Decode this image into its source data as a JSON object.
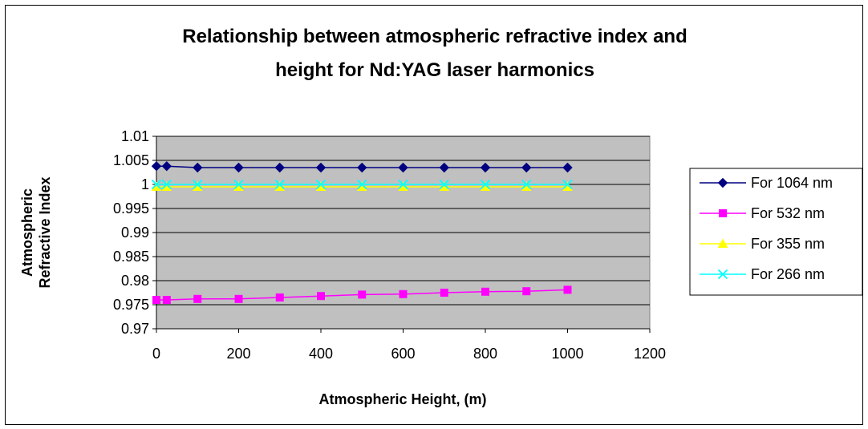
{
  "chart_data": {
    "type": "line",
    "title_lines": [
      "Relationship between atmospheric refractive index and",
      "height  for Nd:YAG laser harmonics"
    ],
    "xlabel": "Atmospheric Height, (m)",
    "ylabel_lines": [
      "Atmospheric",
      "Refractive Index"
    ],
    "xlim": [
      0,
      1200
    ],
    "ylim": [
      0.97,
      1.01
    ],
    "x_ticks": [
      "0",
      "200",
      "400",
      "600",
      "800",
      "1000",
      "1200"
    ],
    "y_ticks": [
      "0.97",
      "0.975",
      "0.98",
      "0.985",
      "0.99",
      "0.995",
      "1",
      "1.005",
      "1.01"
    ],
    "x": [
      0,
      25,
      100,
      200,
      300,
      400,
      500,
      600,
      700,
      800,
      900,
      1000
    ],
    "grid": "horizontal",
    "plot_background": "#c0c0c0",
    "legend_position": "right",
    "series": [
      {
        "name": "For 1064 nm",
        "color": "#000080",
        "marker": "diamond",
        "values": [
          1.0038,
          1.0038,
          1.0035,
          1.0035,
          1.0035,
          1.0035,
          1.0035,
          1.0035,
          1.0035,
          1.0035,
          1.0035,
          1.0035
        ]
      },
      {
        "name": "For 532 nm",
        "color": "#ff00ff",
        "marker": "square",
        "values": [
          0.976,
          0.976,
          0.9762,
          0.9762,
          0.9765,
          0.9768,
          0.9771,
          0.9772,
          0.9775,
          0.9777,
          0.9778,
          0.9781
        ]
      },
      {
        "name": "For 355 nm",
        "color": "#ffff00",
        "marker": "triangle",
        "values": [
          0.9995,
          0.9995,
          0.9995,
          0.9995,
          0.9995,
          0.9995,
          0.9995,
          0.9995,
          0.9995,
          0.9995,
          0.9995,
          0.9995
        ]
      },
      {
        "name": "For 266 nm",
        "color": "#00ffff",
        "marker": "x",
        "values": [
          1.0,
          1.0,
          1.0,
          1.0,
          1.0,
          1.0,
          1.0,
          1.0,
          1.0,
          1.0,
          1.0,
          1.0
        ]
      }
    ]
  }
}
